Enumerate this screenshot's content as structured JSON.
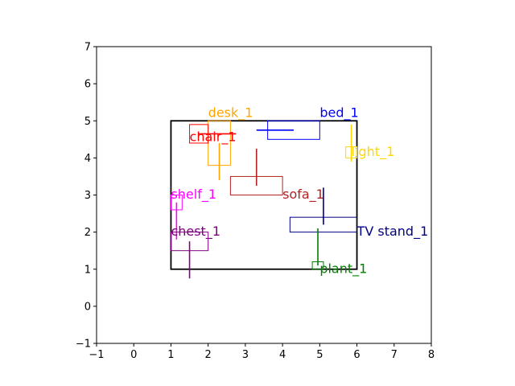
{
  "chart_data": {
    "type": "scatter",
    "xlim": [
      -1,
      8
    ],
    "ylim": [
      -1,
      7
    ],
    "xticks": [
      -1,
      0,
      1,
      2,
      3,
      4,
      5,
      6,
      7,
      8
    ],
    "yticks": [
      -1,
      0,
      1,
      2,
      3,
      4,
      5,
      6,
      7
    ],
    "grid": false,
    "room": {
      "x0": 1,
      "y0": 1,
      "x1": 6,
      "y1": 5,
      "color": "#000000"
    },
    "objects": [
      {
        "label": "desk_1",
        "color": "#ffa500",
        "rect": [
          2.0,
          3.8,
          2.6,
          5.0
        ],
        "line": [
          [
            2.3,
            3.4
          ],
          [
            2.3,
            4.4
          ]
        ],
        "label_pos": [
          2.0,
          5.1
        ]
      },
      {
        "label": "bed_1",
        "color": "#0000ff",
        "rect": [
          3.6,
          4.5,
          5.0,
          5.0
        ],
        "line": [
          [
            3.3,
            4.75
          ],
          [
            4.3,
            4.75
          ]
        ],
        "label_pos": [
          5.0,
          5.1
        ]
      },
      {
        "label": "chair_1",
        "color": "#ff0000",
        "rect": [
          1.5,
          4.4,
          2.0,
          4.9
        ],
        "line": [
          [
            1.75,
            4.65
          ],
          [
            2.75,
            4.65
          ]
        ],
        "label_pos": [
          1.5,
          4.45
        ]
      },
      {
        "label": "light_1",
        "color": "#ffd700",
        "rect": [
          5.7,
          4.0,
          6.0,
          4.3
        ],
        "line": [
          [
            5.85,
            3.9
          ],
          [
            5.85,
            4.9
          ]
        ],
        "label_pos": [
          5.85,
          4.05
        ]
      },
      {
        "label": "sofa_1",
        "color": "#b22222",
        "rect": [
          2.6,
          3.0,
          4.0,
          3.5
        ],
        "line": [
          [
            3.3,
            3.25
          ],
          [
            3.3,
            4.25
          ]
        ],
        "label_pos": [
          4.0,
          2.9
        ]
      },
      {
        "label": "shelf_1",
        "color": "#ff00ff",
        "rect": [
          1.0,
          2.6,
          1.3,
          3.0
        ],
        "line": [
          [
            1.15,
            1.8
          ],
          [
            1.15,
            2.8
          ]
        ],
        "label_pos": [
          1.0,
          2.9
        ]
      },
      {
        "label": "TV stand_1",
        "color": "#000080",
        "rect": [
          4.2,
          2.0,
          6.0,
          2.4
        ],
        "line": [
          [
            5.1,
            2.2
          ],
          [
            5.1,
            3.2
          ]
        ],
        "label_pos": [
          6.0,
          1.9
        ]
      },
      {
        "label": "chest_1",
        "color": "#800080",
        "rect": [
          1.0,
          1.5,
          2.0,
          2.0
        ],
        "line": [
          [
            1.5,
            0.75
          ],
          [
            1.5,
            1.75
          ]
        ],
        "label_pos": [
          1.0,
          1.9
        ]
      },
      {
        "label": "plant_1",
        "color": "#008000",
        "rect": [
          4.8,
          1.0,
          5.1,
          1.2
        ],
        "line": [
          [
            4.95,
            1.1
          ],
          [
            4.95,
            2.1
          ]
        ],
        "label_pos": [
          5.0,
          0.9
        ]
      }
    ]
  }
}
